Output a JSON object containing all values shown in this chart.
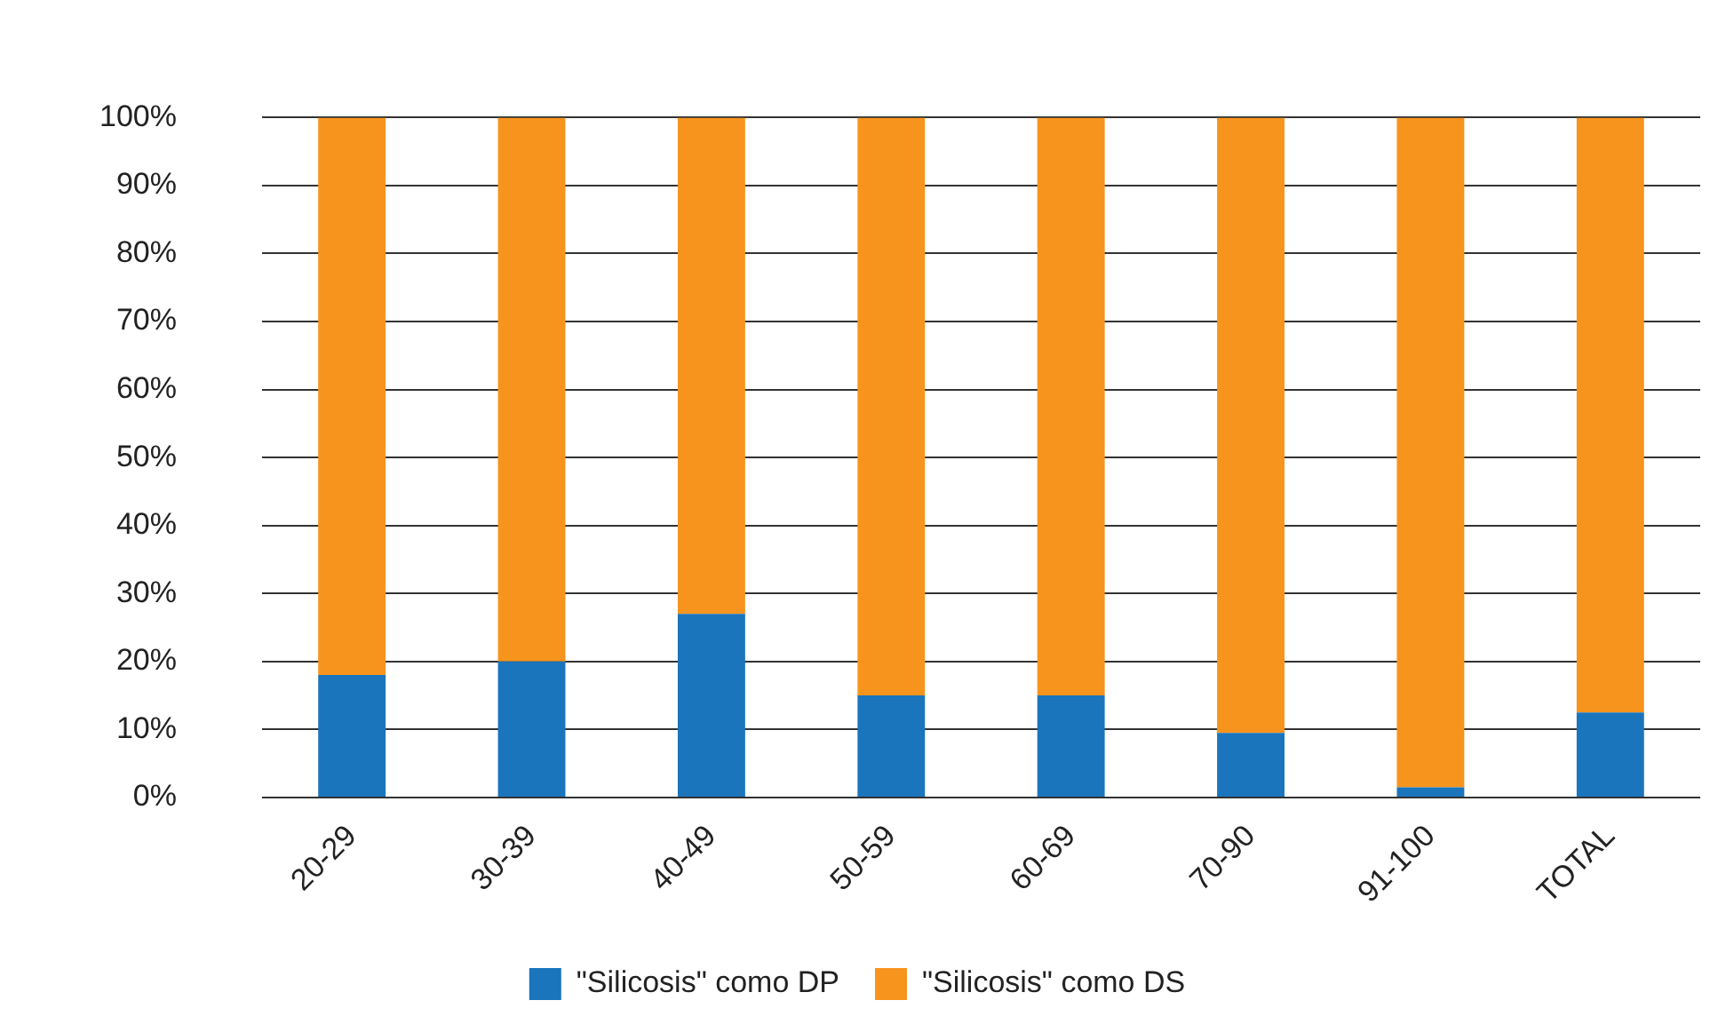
{
  "chart_data": {
    "type": "bar",
    "stacked": true,
    "categories": [
      "20-29",
      "30-39",
      "40-49",
      "50-59",
      "60-69",
      "70-90",
      "91-100",
      "TOTAL"
    ],
    "series": [
      {
        "name": "\"Silicosis\" como DP",
        "color": "#1a75bc",
        "values": [
          18,
          20,
          27,
          15,
          15,
          9.5,
          1.5,
          12.5
        ]
      },
      {
        "name": "\"Silicosis\" como DS",
        "color": "#f7941d",
        "values": [
          82,
          80,
          73,
          85,
          85,
          90.5,
          98.5,
          87.5
        ]
      }
    ],
    "ylim": [
      0,
      100
    ],
    "yticks": [
      {
        "value": 0,
        "label": "0%"
      },
      {
        "value": 10,
        "label": "10%"
      },
      {
        "value": 20,
        "label": "20%"
      },
      {
        "value": 30,
        "label": "30%"
      },
      {
        "value": 40,
        "label": "40%"
      },
      {
        "value": 50,
        "label": "50%"
      },
      {
        "value": 60,
        "label": "60%"
      },
      {
        "value": 70,
        "label": "70%"
      },
      {
        "value": 80,
        "label": "80%"
      },
      {
        "value": 90,
        "label": "90%"
      },
      {
        "value": 100,
        "label": "100%"
      }
    ],
    "grid": "y",
    "legend": "bottom"
  }
}
